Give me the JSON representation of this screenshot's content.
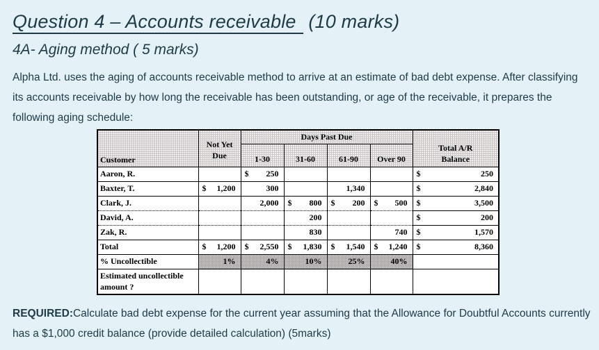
{
  "colors": {
    "page_bg": "#e4f1f7",
    "text": "#1d3b46",
    "table_text": "#000000",
    "table_cell_bg": "#ffffff",
    "table_header_fill": "#cac6c6",
    "percent_row_fill": "#a7a3a3",
    "table_border": "#000000"
  },
  "title": {
    "main": "Question 4 – Accounts receivable",
    "suffix": "(10 marks)"
  },
  "subtitle": "4A- Aging method ( 5 marks)",
  "intro": "Alpha Ltd. uses the aging of accounts receivable method to arrive at an estimate of bad debt expense. After classifying its accounts receivable by how long the receivable has been outstanding, or age of the receivable, it prepares the following aging schedule:",
  "table": {
    "headers": {
      "customer": "Customer",
      "not_yet_due_lines": [
        "Not Yet",
        "Due"
      ],
      "days_past_due": "Days Past Due",
      "aging_buckets": [
        "1-30",
        "31-60",
        "61-90",
        "Over 90"
      ],
      "total_lines": [
        "Total A/R",
        "Balance"
      ]
    },
    "rows": [
      {
        "type": "data",
        "bottom": "solid",
        "name": "Aaron, R.",
        "cells": [
          null,
          {
            "d": "$",
            "v": "250"
          },
          null,
          null,
          null,
          {
            "d": "$",
            "v": "250"
          }
        ]
      },
      {
        "type": "data",
        "bottom": "solid",
        "name": "Baxter, T.",
        "cells": [
          {
            "d": "$",
            "v": "1,200"
          },
          {
            "v": "300"
          },
          null,
          {
            "v": "1,340"
          },
          null,
          {
            "d": "$",
            "v": "2,840"
          }
        ]
      },
      {
        "type": "data",
        "bottom": "dotted",
        "name": "Clark, J.",
        "cells": [
          null,
          {
            "v": "2,000"
          },
          {
            "d": "$",
            "v": "800"
          },
          {
            "d": "$",
            "v": "200"
          },
          {
            "d": "$",
            "v": "500"
          },
          {
            "d": "$",
            "v": "3,500"
          }
        ]
      },
      {
        "type": "data",
        "bottom": "dotted",
        "name": "David, A.",
        "cells": [
          null,
          null,
          {
            "v": "200"
          },
          null,
          null,
          {
            "d": "$",
            "v": "200"
          }
        ]
      },
      {
        "type": "data",
        "bottom": "solid",
        "name": "Zak, R.",
        "cells": [
          null,
          null,
          {
            "v": "830"
          },
          null,
          {
            "v": "740"
          },
          {
            "d": "$",
            "v": "1,570"
          }
        ]
      },
      {
        "type": "total",
        "bottom": "solid",
        "name": "Total",
        "cells": [
          {
            "d": "$",
            "v": "1,200"
          },
          {
            "d": "$",
            "v": "2,550"
          },
          {
            "d": "$",
            "v": "1,830"
          },
          {
            "d": "$",
            "v": "1,540"
          },
          {
            "d": "$",
            "v": "1,240"
          },
          {
            "d": "$",
            "v": "8,360"
          }
        ]
      },
      {
        "type": "percent",
        "bottom": "solid",
        "name": "% Uncollectible",
        "cells": [
          {
            "v": "1%"
          },
          {
            "v": "4%"
          },
          {
            "v": "10%"
          },
          {
            "v": "25%"
          },
          {
            "v": "40%"
          },
          null
        ]
      },
      {
        "type": "estimate",
        "bottom": "solid",
        "name": "Estimated uncollectible amount ?",
        "cells": [
          null,
          null,
          null,
          null,
          null,
          null
        ]
      }
    ]
  },
  "required": {
    "label": "REQUIRED:",
    "text": "Calculate bad debt expense for the current year assuming that the Allowance for Doubtful Accounts currently has a $1,000 credit balance (provide detailed calculation) (5marks)"
  }
}
